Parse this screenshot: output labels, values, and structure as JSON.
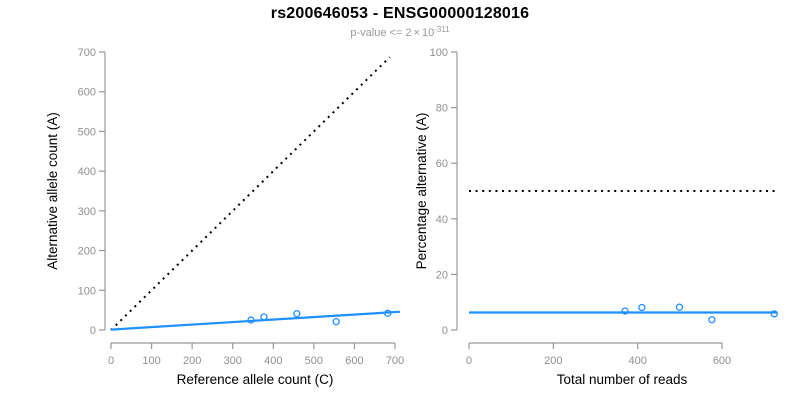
{
  "header": {
    "title": "rs200646053 - ENSG00000128016",
    "subtitle_prefix": "p-value <= 2",
    "subtitle_times": "×",
    "subtitle_base": "10",
    "subtitle_exponent": "-311"
  },
  "colors": {
    "accent_blue": "#1E90FF",
    "axis_gray": "#999999",
    "tick_label_gray": "#8f8f8f",
    "axis_title_black": "#000000",
    "identity_line_black": "#000000",
    "subtitle_gray": "#999999"
  },
  "chart_data": [
    {
      "type": "scatter",
      "panel": "left",
      "xlabel": "Reference allele count (C)",
      "ylabel": "Alternative allele count (A)",
      "xlim": [
        0,
        715
      ],
      "ylim": [
        0,
        700
      ],
      "xticks": [
        0,
        100,
        200,
        300,
        400,
        500,
        600,
        700
      ],
      "yticks": [
        0,
        100,
        200,
        300,
        400,
        500,
        600,
        700
      ],
      "grid": false,
      "points": [
        [
          345,
          25
        ],
        [
          377,
          33
        ],
        [
          458,
          41
        ],
        [
          555,
          21
        ],
        [
          682,
          42
        ]
      ],
      "lines": [
        {
          "name": "identity-line",
          "style": "dotted",
          "color": "#000000",
          "from": [
            0,
            0
          ],
          "to": [
            687,
            687
          ]
        },
        {
          "name": "fit-line",
          "style": "solid",
          "color": "#1E90FF",
          "from": [
            0,
            1
          ],
          "to": [
            712,
            46
          ]
        }
      ]
    },
    {
      "type": "scatter",
      "panel": "right",
      "xlabel": "Total number of reads",
      "ylabel": "Percentage alternative (A)",
      "xlim": [
        0,
        730
      ],
      "ylim": [
        0,
        100
      ],
      "xticks": [
        0,
        200,
        400,
        600
      ],
      "yticks": [
        0,
        20,
        40,
        60,
        80,
        100
      ],
      "grid": false,
      "points": [
        [
          370,
          6.8
        ],
        [
          410,
          8.1
        ],
        [
          499,
          8.2
        ],
        [
          576,
          3.7
        ],
        [
          724,
          5.8
        ]
      ],
      "lines": [
        {
          "name": "fifty-percent-line",
          "style": "dotted",
          "color": "#000000",
          "from": [
            0,
            50
          ],
          "to": [
            725,
            50
          ]
        },
        {
          "name": "fit-line",
          "style": "solid",
          "color": "#1E90FF",
          "from": [
            0,
            6.3
          ],
          "to": [
            730,
            6.3
          ]
        }
      ]
    }
  ]
}
